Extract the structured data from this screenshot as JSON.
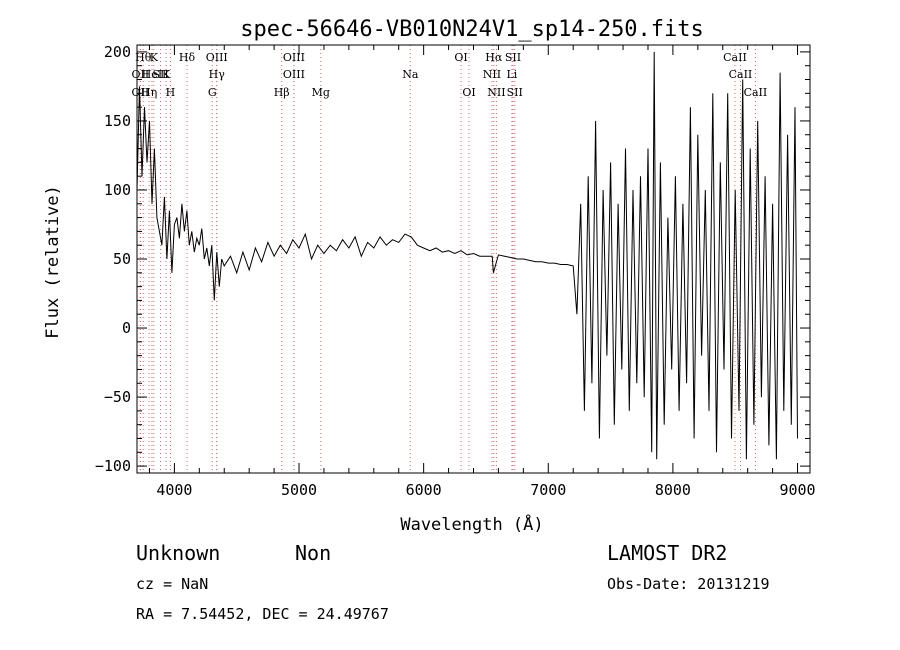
{
  "chart_data": {
    "type": "line",
    "title": "spec-56646-VB010N24V1_sp14-250.fits",
    "xlabel": "Wavelength (Å)",
    "ylabel": "Flux (relative)",
    "xlim": [
      3700,
      9100
    ],
    "ylim": [
      -105,
      205
    ],
    "xticks": [
      4000,
      5000,
      6000,
      7000,
      8000,
      9000
    ],
    "yticks": [
      200,
      150,
      100,
      50,
      0,
      -50,
      -100
    ],
    "ytick_labels": [
      "200",
      "150",
      "100",
      "50",
      "0",
      "−50",
      "−100"
    ],
    "grid": false,
    "legend": "none",
    "series": [
      {
        "x": [
          3700,
          3720,
          3740,
          3760,
          3780,
          3800,
          3820,
          3840,
          3860,
          3880,
          3900,
          3920,
          3940,
          3960,
          3980,
          4000,
          4020,
          4040,
          4060,
          4080,
          4100,
          4120,
          4140,
          4160,
          4180,
          4200,
          4220,
          4240,
          4260,
          4280,
          4300,
          4320,
          4340,
          4360,
          4380,
          4400,
          4450,
          4500,
          4550,
          4600,
          4650,
          4700,
          4750,
          4800,
          4850,
          4900,
          4950,
          5000,
          5050,
          5100,
          5150,
          5200,
          5250,
          5300,
          5350,
          5400,
          5450,
          5500,
          5550,
          5600,
          5650,
          5700,
          5750,
          5800,
          5850,
          5900,
          5950,
          6000,
          6050,
          6100,
          6150,
          6200,
          6250,
          6300,
          6350,
          6400,
          6450,
          6500,
          6550,
          6560,
          6600,
          6650,
          6700,
          6750,
          6800,
          6850,
          6900,
          6950,
          7000,
          7050,
          7100,
          7150,
          7200,
          7230,
          7260,
          7290,
          7320,
          7350,
          7380,
          7410,
          7440,
          7470,
          7500,
          7530,
          7560,
          7590,
          7620,
          7650,
          7680,
          7710,
          7740,
          7770,
          7800,
          7830,
          7850,
          7870,
          7900,
          7930,
          7960,
          7990,
          8020,
          8050,
          8080,
          8110,
          8140,
          8170,
          8200,
          8230,
          8260,
          8290,
          8320,
          8350,
          8380,
          8410,
          8440,
          8470,
          8500,
          8530,
          8560,
          8590,
          8620,
          8650,
          8680,
          8710,
          8740,
          8770,
          8800,
          8830,
          8860,
          8890,
          8920,
          8950,
          8980,
          9000
        ],
        "y": [
          100,
          175,
          110,
          160,
          120,
          150,
          90,
          130,
          80,
          70,
          60,
          95,
          50,
          85,
          40,
          75,
          80,
          65,
          90,
          70,
          85,
          60,
          70,
          55,
          65,
          60,
          72,
          50,
          58,
          45,
          60,
          20,
          55,
          30,
          50,
          45,
          52,
          40,
          55,
          42,
          58,
          48,
          62,
          52,
          60,
          54,
          64,
          58,
          68,
          50,
          60,
          54,
          60,
          56,
          64,
          58,
          66,
          52,
          62,
          58,
          66,
          60,
          64,
          62,
          68,
          66,
          60,
          58,
          56,
          58,
          55,
          56,
          54,
          56,
          53,
          54,
          52,
          52,
          52,
          40,
          53,
          52,
          51,
          50,
          50,
          49,
          48,
          48,
          47,
          47,
          46,
          46,
          45,
          10,
          90,
          -60,
          110,
          -40,
          150,
          -80,
          100,
          -20,
          120,
          -70,
          90,
          -30,
          130,
          -60,
          100,
          -40,
          110,
          -50,
          130,
          -90,
          200,
          -95,
          120,
          -70,
          80,
          -30,
          110,
          -60,
          90,
          -40,
          160,
          -80,
          140,
          -20,
          100,
          -60,
          170,
          -90,
          120,
          -30,
          170,
          -80,
          100,
          -60,
          180,
          -95,
          130,
          -70,
          150,
          -50,
          110,
          -85,
          90,
          -95,
          185,
          -60,
          140,
          -70,
          160,
          -80
        ]
      }
    ],
    "lines": [
      {
        "w": 3750,
        "label": "Hθ",
        "row": 0
      },
      {
        "w": 3727,
        "label": "OII",
        "row": 1
      },
      {
        "w": 3727,
        "label": "OII",
        "row": 2
      },
      {
        "w": 3835,
        "label": "K",
        "row": 0
      },
      {
        "w": 3820,
        "label": "HeI",
        "row": 1
      },
      {
        "w": 3797,
        "label": "Hη",
        "row": 2
      },
      {
        "w": 3934,
        "label": "K",
        "row": 1
      },
      {
        "w": 3889,
        "label": "SII",
        "row": 1
      },
      {
        "w": 3968,
        "label": "H",
        "row": 2
      },
      {
        "w": 4101,
        "label": "Hδ",
        "row": 0
      },
      {
        "w": 4340,
        "label": "OIII",
        "row": 0
      },
      {
        "w": 4340,
        "label": "Hγ",
        "row": 1
      },
      {
        "w": 4304,
        "label": "G",
        "row": 2
      },
      {
        "w": 4861,
        "label": "Hβ",
        "row": 2
      },
      {
        "w": 4959,
        "label": "OIII",
        "row": 0
      },
      {
        "w": 4959,
        "label": "OIII",
        "row": 1
      },
      {
        "w": 5175,
        "label": "Mg",
        "row": 2
      },
      {
        "w": 5893,
        "label": "Na",
        "row": 1
      },
      {
        "w": 6300,
        "label": "OI",
        "row": 0
      },
      {
        "w": 6364,
        "label": "OI",
        "row": 2
      },
      {
        "w": 6563,
        "label": "Hα",
        "row": 0
      },
      {
        "w": 6548,
        "label": "NII",
        "row": 1
      },
      {
        "w": 6584,
        "label": "NII",
        "row": 2
      },
      {
        "w": 6717,
        "label": "SII",
        "row": 0
      },
      {
        "w": 6708,
        "label": "Li",
        "row": 1
      },
      {
        "w": 6731,
        "label": "SII",
        "row": 2
      },
      {
        "w": 8498,
        "label": "CaII",
        "row": 0
      },
      {
        "w": 8542,
        "label": "CaII",
        "row": 1
      },
      {
        "w": 8662,
        "label": "CaII",
        "row": 2
      }
    ]
  },
  "info": {
    "class_label": "Unknown",
    "subclass_label": "Non",
    "survey": "LAMOST DR2",
    "cz_text": "cz = NaN",
    "obs_date_text": "Obs-Date: 20131219",
    "radec_text": "RA =    7.54452, DEC =   24.49767"
  }
}
